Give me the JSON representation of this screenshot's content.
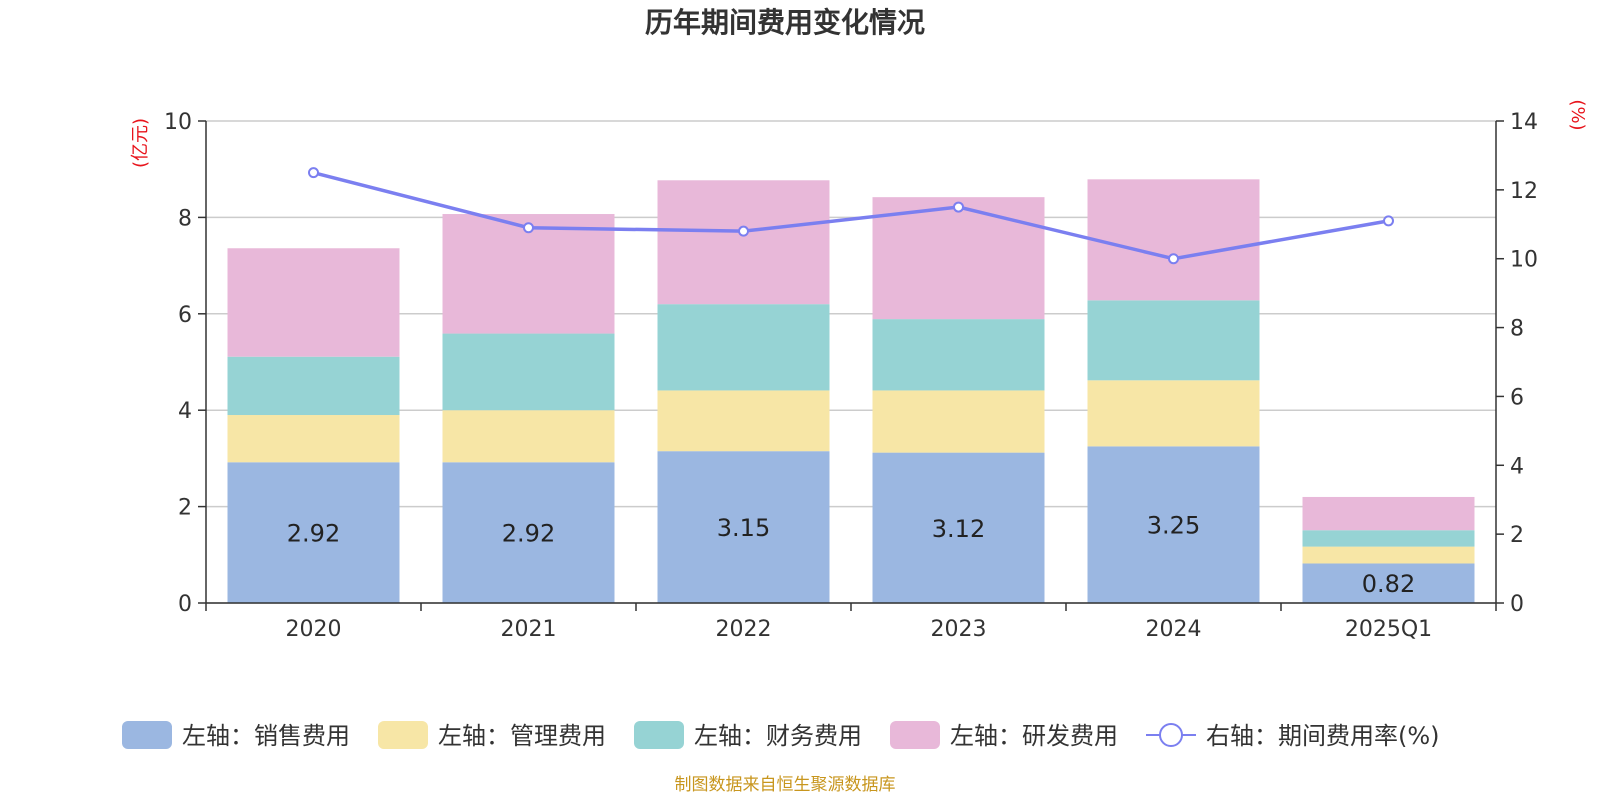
{
  "chart_data": {
    "type": "bar",
    "title": "历年期间费用变化情况",
    "categories": [
      "2020",
      "2021",
      "2022",
      "2023",
      "2024",
      "2025Q1"
    ],
    "y_left": {
      "unit_label": "(亿元)",
      "ylim": [
        0,
        10
      ],
      "ticks": [
        "0",
        "2",
        "4",
        "6",
        "8",
        "10"
      ]
    },
    "y_right": {
      "unit_label": "(%)",
      "ylim": [
        0,
        14
      ],
      "ticks": [
        "0",
        "2",
        "4",
        "6",
        "8",
        "10",
        "12",
        "14"
      ]
    },
    "grid": true,
    "stacked": true,
    "legend_position": "bottom",
    "series": [
      {
        "name": "左轴：销售费用",
        "type": "bar",
        "axis": "left",
        "color": "#9bb7e1",
        "values": [
          2.92,
          2.92,
          3.15,
          3.12,
          3.25,
          0.82
        ],
        "data_labels": [
          "2.92",
          "2.92",
          "3.15",
          "3.12",
          "3.25",
          "0.82"
        ]
      },
      {
        "name": "左轴：管理费用",
        "type": "bar",
        "axis": "left",
        "color": "#f7e6a6",
        "values": [
          0.98,
          1.08,
          1.26,
          1.29,
          1.37,
          0.35
        ]
      },
      {
        "name": "左轴：财务费用",
        "type": "bar",
        "axis": "left",
        "color": "#96d3d4",
        "values": [
          1.21,
          1.59,
          1.79,
          1.48,
          1.66,
          0.34
        ]
      },
      {
        "name": "左轴：研发费用",
        "type": "bar",
        "axis": "left",
        "color": "#e8b8d9",
        "values": [
          2.25,
          2.48,
          2.57,
          2.53,
          2.51,
          0.69
        ]
      },
      {
        "name": "右轴：期间费用率(%)",
        "type": "line",
        "axis": "right",
        "color": "#7b7ff0",
        "values": [
          12.5,
          10.9,
          10.8,
          11.5,
          10.0,
          11.1
        ]
      }
    ]
  },
  "source": "制图数据来自恒生聚源数据库"
}
